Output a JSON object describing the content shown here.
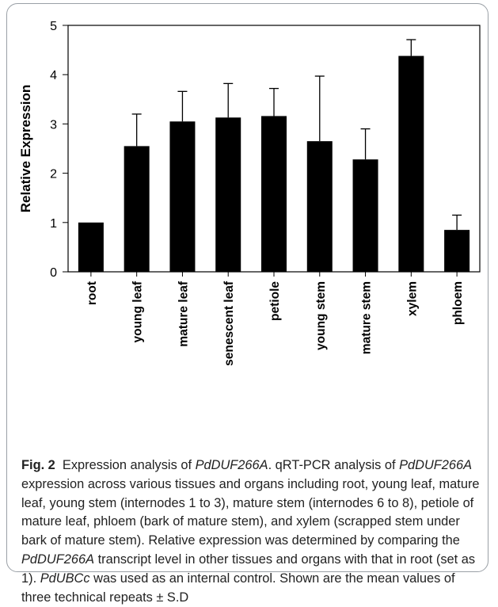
{
  "chart_data": {
    "type": "bar",
    "categories": [
      "root",
      "young leaf",
      "mature leaf",
      "senescent leaf",
      "petiole",
      "young stem",
      "mature stem",
      "xylem",
      "phloem"
    ],
    "values": [
      1.0,
      2.55,
      3.05,
      3.13,
      3.16,
      2.65,
      2.28,
      4.38,
      0.85
    ],
    "errors": [
      0.0,
      0.65,
      0.61,
      0.69,
      0.56,
      1.32,
      0.62,
      0.33,
      0.3
    ],
    "title": "",
    "xlabel": "",
    "ylabel": "Relative Expression",
    "ylim": [
      0,
      5
    ],
    "yticks": [
      0,
      1,
      2,
      3,
      4,
      5
    ],
    "grid": false,
    "bar_color": "#000000"
  },
  "caption": {
    "label": "Fig. 2",
    "parts": [
      {
        "t": "Expression analysis of ",
        "i": false
      },
      {
        "t": "PdDUF266A",
        "i": true
      },
      {
        "t": ". qRT-PCR analysis of ",
        "i": false
      },
      {
        "t": "PdDUF266A",
        "i": true
      },
      {
        "t": " expression across various tissues and organs including root, young leaf, mature leaf, young stem (internodes 1 to 3), mature stem (internodes 6 to 8), petiole of mature leaf, phloem (bark of mature stem), and xylem (scrapped stem under bark of mature stem). Relative expression was determined by comparing the ",
        "i": false
      },
      {
        "t": "PdDUF266A",
        "i": true
      },
      {
        "t": " transcript level in other tissues and organs with that in root (set as 1). ",
        "i": false
      },
      {
        "t": "PdUBCc",
        "i": true
      },
      {
        "t": " was used as an internal control. Shown are the mean values of three technical repeats ± S.D",
        "i": false
      }
    ]
  }
}
